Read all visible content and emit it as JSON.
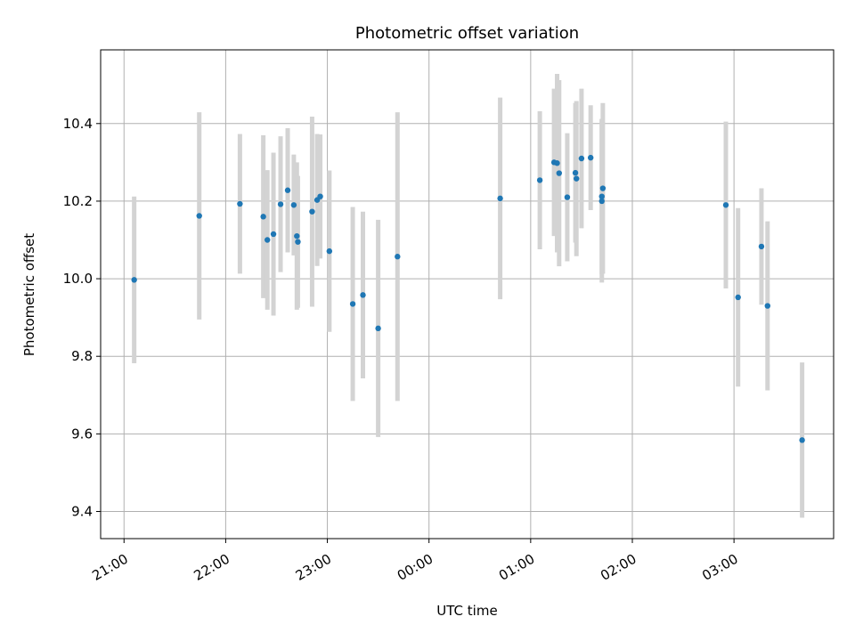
{
  "chart_data": {
    "type": "scatter",
    "title": "Photometric offset variation",
    "xlabel": "UTC time",
    "ylabel": "Photometric offset",
    "x_unit": "hour",
    "xlim": [
      20.77,
      27.98
    ],
    "ylim": [
      9.33,
      10.59
    ],
    "xticks": [
      {
        "value": 21,
        "label": "21:00"
      },
      {
        "value": 22,
        "label": "22:00"
      },
      {
        "value": 23,
        "label": "23:00"
      },
      {
        "value": 24,
        "label": "00:00"
      },
      {
        "value": 25,
        "label": "01:00"
      },
      {
        "value": 26,
        "label": "02:00"
      },
      {
        "value": 27,
        "label": "03:00"
      }
    ],
    "yticks": [
      {
        "value": 9.4,
        "label": "9.4"
      },
      {
        "value": 9.6,
        "label": "9.6"
      },
      {
        "value": 9.8,
        "label": "9.8"
      },
      {
        "value": 10.0,
        "label": "10.0"
      },
      {
        "value": 10.2,
        "label": "10.2"
      },
      {
        "value": 10.4,
        "label": "10.4"
      }
    ],
    "grid": true,
    "colors": {
      "points": "#1f77b4",
      "error_bars": "#d3d3d3",
      "grid": "#b0b0b0"
    },
    "points": [
      {
        "x": 21.1,
        "y": 9.997,
        "err": 0.215
      },
      {
        "x": 21.74,
        "y": 10.162,
        "err": 0.267
      },
      {
        "x": 22.14,
        "y": 10.193,
        "err": 0.18
      },
      {
        "x": 22.37,
        "y": 10.16,
        "err": 0.21
      },
      {
        "x": 22.41,
        "y": 10.1,
        "err": 0.18
      },
      {
        "x": 22.47,
        "y": 10.115,
        "err": 0.21
      },
      {
        "x": 22.54,
        "y": 10.192,
        "err": 0.175
      },
      {
        "x": 22.61,
        "y": 10.228,
        "err": 0.16
      },
      {
        "x": 22.67,
        "y": 10.19,
        "err": 0.13
      },
      {
        "x": 22.7,
        "y": 10.11,
        "err": 0.19
      },
      {
        "x": 22.71,
        "y": 10.095,
        "err": 0.17
      },
      {
        "x": 22.85,
        "y": 10.173,
        "err": 0.245
      },
      {
        "x": 22.9,
        "y": 10.203,
        "err": 0.17
      },
      {
        "x": 22.93,
        "y": 10.212,
        "err": 0.16
      },
      {
        "x": 23.02,
        "y": 10.071,
        "err": 0.208
      },
      {
        "x": 23.25,
        "y": 9.935,
        "err": 0.25
      },
      {
        "x": 23.35,
        "y": 9.958,
        "err": 0.215
      },
      {
        "x": 23.5,
        "y": 9.872,
        "err": 0.28
      },
      {
        "x": 23.69,
        "y": 10.057,
        "err": 0.372
      },
      {
        "x": 24.7,
        "y": 10.207,
        "err": 0.26
      },
      {
        "x": 25.09,
        "y": 10.254,
        "err": 0.178
      },
      {
        "x": 25.23,
        "y": 10.3,
        "err": 0.19
      },
      {
        "x": 25.26,
        "y": 10.298,
        "err": 0.23
      },
      {
        "x": 25.28,
        "y": 10.272,
        "err": 0.24
      },
      {
        "x": 25.36,
        "y": 10.21,
        "err": 0.165
      },
      {
        "x": 25.44,
        "y": 10.273,
        "err": 0.18
      },
      {
        "x": 25.45,
        "y": 10.258,
        "err": 0.2
      },
      {
        "x": 25.5,
        "y": 10.31,
        "err": 0.18
      },
      {
        "x": 25.59,
        "y": 10.312,
        "err": 0.135
      },
      {
        "x": 25.7,
        "y": 10.2,
        "err": 0.21
      },
      {
        "x": 25.7,
        "y": 10.212,
        "err": 0.2
      },
      {
        "x": 25.71,
        "y": 10.233,
        "err": 0.22
      },
      {
        "x": 26.92,
        "y": 10.19,
        "err": 0.215
      },
      {
        "x": 27.04,
        "y": 9.952,
        "err": 0.23
      },
      {
        "x": 27.27,
        "y": 10.083,
        "err": 0.15
      },
      {
        "x": 27.33,
        "y": 9.93,
        "err": 0.218
      },
      {
        "x": 27.67,
        "y": 9.584,
        "err": 0.2
      }
    ]
  }
}
